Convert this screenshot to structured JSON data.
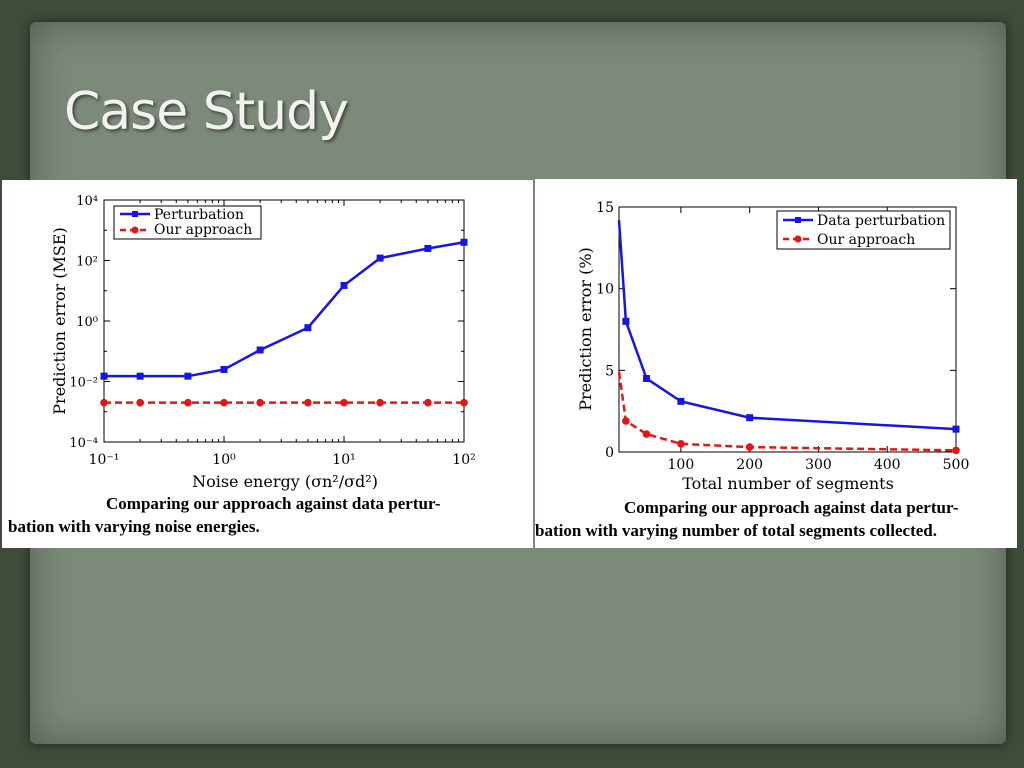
{
  "slide": {
    "title": "Case Study"
  },
  "chart_data": [
    {
      "type": "line",
      "xscale": "log",
      "yscale": "log",
      "xlim": [
        0.1,
        100
      ],
      "ylim": [
        0.0001,
        10000
      ],
      "xlabel": "Noise energy (σn²/σd²)",
      "ylabel": "Prediction error (MSE)",
      "xtick_labels": [
        "10⁻¹",
        "10⁰",
        "10¹",
        "10²"
      ],
      "ytick_labels": [
        "10⁴",
        "10²",
        "10⁰",
        "10⁻²",
        "10⁻⁴"
      ],
      "grid": false,
      "legend_position": "top-left",
      "series": [
        {
          "name": "Perturbation",
          "color": "#1515e6",
          "dash": false,
          "marker": "square",
          "x": [
            0.1,
            0.2,
            0.5,
            1,
            2,
            5,
            10,
            20,
            50,
            100
          ],
          "y": [
            0.015,
            0.015,
            0.015,
            0.025,
            0.11,
            0.6,
            15,
            120,
            250,
            400
          ]
        },
        {
          "name": "Our approach",
          "color": "#e61515",
          "dash": true,
          "marker": "circle",
          "x": [
            0.1,
            0.2,
            0.5,
            1,
            2,
            5,
            10,
            20,
            50,
            100
          ],
          "y": [
            0.002,
            0.002,
            0.002,
            0.002,
            0.002,
            0.002,
            0.002,
            0.002,
            0.002,
            0.002
          ]
        }
      ],
      "caption_line1": "Comparing our approach against data pertur-",
      "caption_line2": "bation with varying noise energies."
    },
    {
      "type": "line",
      "xlim": [
        10,
        500
      ],
      "ylim": [
        0,
        15
      ],
      "xlabel": "Total number of segments",
      "ylabel": "Prediction error (%)",
      "xtick_labels": [
        "100",
        "200",
        "300",
        "400",
        "500"
      ],
      "ytick_labels": [
        "15",
        "10",
        "5",
        "0"
      ],
      "grid": false,
      "legend_position": "top-right",
      "series": [
        {
          "name": "Data perturbation",
          "color": "#1515e6",
          "dash": false,
          "marker": "square",
          "x": [
            10,
            20,
            50,
            100,
            200,
            500
          ],
          "y": [
            14.2,
            8,
            4.5,
            3.1,
            2.1,
            1.4
          ]
        },
        {
          "name": "Our approach",
          "color": "#e61515",
          "dash": true,
          "marker": "circle",
          "x": [
            10,
            20,
            50,
            100,
            200,
            500
          ],
          "y": [
            4.9,
            1.9,
            1.1,
            0.5,
            0.3,
            0.1
          ]
        }
      ],
      "caption_line1": "Comparing our approach against data pertur-",
      "caption_line2": "bation with varying number of total segments collected."
    }
  ]
}
